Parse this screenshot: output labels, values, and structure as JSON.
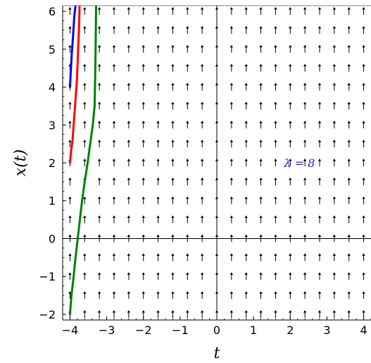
{
  "chart_data": {
    "type": "line",
    "title": "",
    "xlabel": "t",
    "ylabel": "x(t)",
    "xlim": [
      -4.2,
      4.2
    ],
    "ylim": [
      -2.15,
      6.15
    ],
    "x_ticks": [
      -4,
      -3,
      -2,
      -1,
      0,
      1,
      2,
      3,
      4
    ],
    "x_tick_labels": [
      "−4",
      "−3",
      "−2",
      "−1",
      "0",
      "1",
      "2",
      "3",
      "4"
    ],
    "y_ticks": [
      -2,
      -1,
      0,
      1,
      2,
      3,
      4,
      5,
      6
    ],
    "y_tick_labels": [
      "−2",
      "−1",
      "0",
      "1",
      "2",
      "3",
      "4",
      "5",
      "6"
    ],
    "grid": false,
    "slope_field": {
      "x_step": 0.4,
      "y_step": 0.5,
      "direction": "up"
    },
    "annotation": {
      "text": "λ = 8",
      "x": 2.25,
      "y": 2.0,
      "color": "#1f1fdf"
    },
    "series": [
      {
        "color": "#0000ff",
        "x": [
          -4.0,
          -3.98,
          -3.95,
          -3.92,
          -3.9,
          -3.88,
          -3.85
        ],
        "y": [
          4.0,
          4.4,
          4.9,
          5.3,
          5.6,
          5.9,
          6.15
        ]
      },
      {
        "color": "#ff0000",
        "x": [
          -4.0,
          -3.97,
          -3.93,
          -3.9,
          -3.87,
          -3.84,
          -3.81,
          -3.79,
          -3.77,
          -3.75,
          -3.74
        ],
        "y": [
          2.0,
          2.3,
          2.6,
          3.0,
          3.4,
          3.8,
          4.2,
          4.7,
          5.2,
          5.7,
          6.15
        ]
      },
      {
        "color": "#008000",
        "x": [
          -4.0,
          -3.96,
          -3.9,
          -3.85,
          -3.79,
          -3.73,
          -3.67,
          -3.6,
          -3.52,
          -3.45,
          -3.38,
          -3.33,
          -3.31,
          -3.3,
          -3.29
        ],
        "y": [
          -2.0,
          -1.5,
          -1.0,
          -0.5,
          0.0,
          0.5,
          1.0,
          1.5,
          2.0,
          2.5,
          3.0,
          3.5,
          4.5,
          5.2,
          6.15
        ]
      }
    ]
  }
}
